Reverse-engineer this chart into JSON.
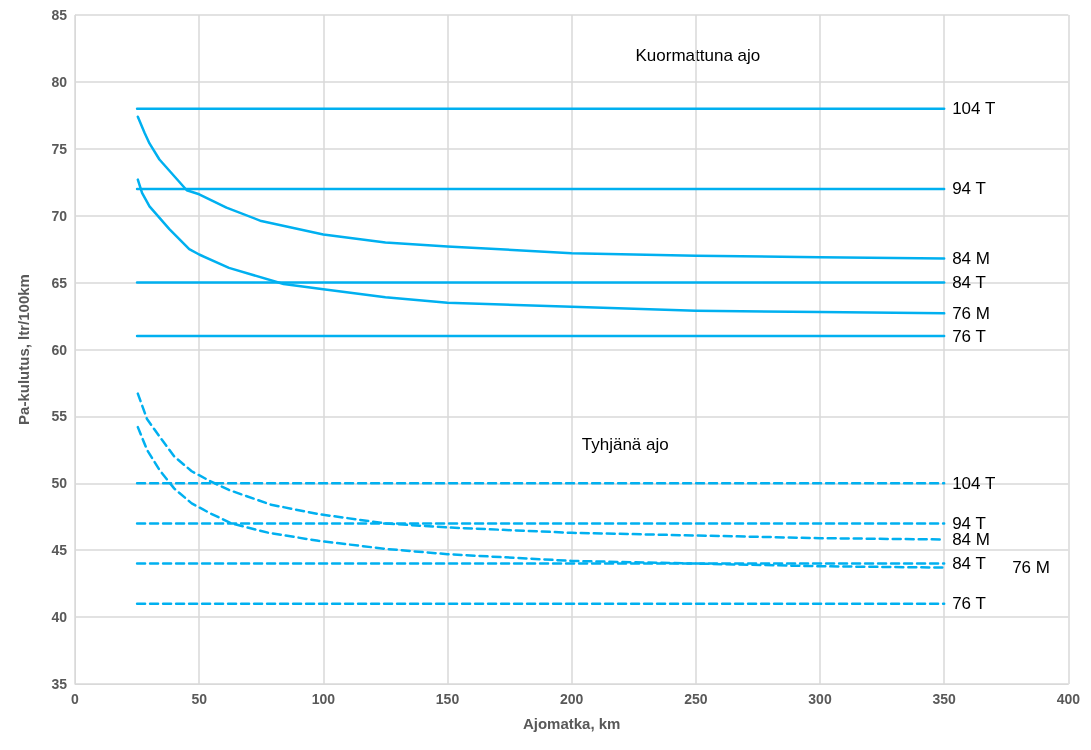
{
  "chart_data": {
    "type": "line",
    "xlabel": "Ajomatka, km",
    "ylabel": "Pa-kulutus, ltr/100km",
    "xlim": [
      0,
      400
    ],
    "xticks": [
      0,
      50,
      100,
      150,
      200,
      250,
      300,
      350,
      400
    ],
    "ylim": [
      35,
      85
    ],
    "yticks": [
      35,
      40,
      45,
      50,
      55,
      60,
      65,
      70,
      75,
      80,
      85
    ],
    "grid": true,
    "legend": false,
    "marker": "none",
    "annotations": [
      "Kuormattuna ajo",
      "Tyhjänä ajo"
    ],
    "series": [
      {
        "name": "104 T",
        "color": "#00b0f0",
        "line_style": "solid",
        "x": [
          25,
          350
        ],
        "values": [
          78,
          78
        ]
      },
      {
        "name": "94 T",
        "color": "#00b0f0",
        "line_style": "solid",
        "x": [
          25,
          350
        ],
        "values": [
          72,
          72
        ]
      },
      {
        "name": "84 M",
        "color": "#00b0f0",
        "line_style": "solid",
        "x": [
          25.3,
          28,
          30,
          34,
          45,
          50,
          61,
          75,
          100,
          125,
          150,
          200,
          250,
          300,
          350
        ],
        "values": [
          77.4,
          76.2,
          75.4,
          74.2,
          71.9,
          71.6,
          70.6,
          69.6,
          68.6,
          68.0,
          67.7,
          67.2,
          67.0,
          66.9,
          66.8
        ]
      },
      {
        "name": "84 T",
        "color": "#00b0f0",
        "line_style": "solid",
        "x": [
          25,
          350
        ],
        "values": [
          65,
          65
        ]
      },
      {
        "name": "76 M",
        "color": "#00b0f0",
        "line_style": "solid",
        "x": [
          25.3,
          27,
          30,
          38,
          46,
          50,
          62,
          84,
          100,
          125,
          150,
          200,
          250,
          300,
          350
        ],
        "values": [
          72.7,
          71.7,
          70.7,
          69.0,
          67.5,
          67.1,
          66.1,
          64.9,
          64.5,
          63.9,
          63.5,
          63.2,
          62.9,
          62.8,
          62.7
        ]
      },
      {
        "name": "76 T",
        "color": "#00b0f0",
        "line_style": "solid",
        "x": [
          25,
          350
        ],
        "values": [
          61,
          61
        ]
      },
      {
        "name": "104 T",
        "color": "#00b0f0",
        "line_style": "dashed",
        "x": [
          25,
          350
        ],
        "values": [
          50,
          50
        ]
      },
      {
        "name": "94 T",
        "color": "#00b0f0",
        "line_style": "dashed",
        "x": [
          25,
          350
        ],
        "values": [
          47,
          47
        ]
      },
      {
        "name": "84 M",
        "color": "#00b0f0",
        "line_style": "dashed",
        "x": [
          25.3,
          29,
          34,
          40,
          47,
          54,
          62,
          79,
          98,
          125,
          150,
          200,
          250,
          300,
          350
        ],
        "values": [
          56.7,
          54.8,
          53.5,
          52.0,
          50.9,
          50.2,
          49.5,
          48.4,
          47.7,
          47.0,
          46.7,
          46.3,
          46.1,
          45.9,
          45.8
        ]
      },
      {
        "name": "84 T",
        "color": "#00b0f0",
        "line_style": "dashed",
        "x": [
          25,
          350
        ],
        "values": [
          44,
          44
        ]
      },
      {
        "name": "76 M",
        "color": "#00b0f0",
        "line_style": "dashed",
        "x": [
          25.3,
          29,
          34,
          40,
          47,
          54,
          63,
          78,
          98,
          125,
          150,
          200,
          250,
          300,
          350
        ],
        "values": [
          54.2,
          52.5,
          51.0,
          49.6,
          48.5,
          47.8,
          47.0,
          46.3,
          45.7,
          45.1,
          44.7,
          44.2,
          44.0,
          43.8,
          43.7
        ]
      },
      {
        "name": "76 T",
        "color": "#00b0f0",
        "line_style": "dashed",
        "x": [
          25,
          350
        ],
        "values": [
          41,
          41
        ]
      }
    ]
  }
}
